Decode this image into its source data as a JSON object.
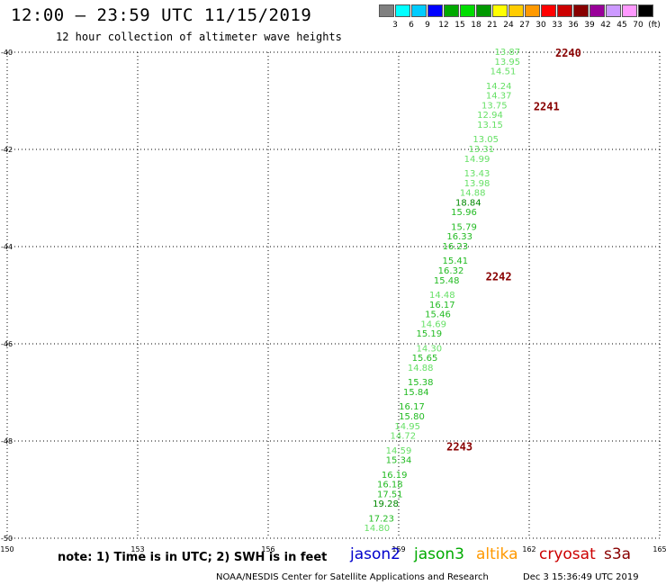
{
  "header": {
    "title": "12:00 – 23:59 UTC 11/15/2019",
    "subtitle": "12 hour collection of altimeter wave heights"
  },
  "colorbar": {
    "colors": [
      "#808080",
      "#00ffff",
      "#00ccff",
      "#0000ff",
      "#00aa00",
      "#00dd00",
      "#009900",
      "#ffff00",
      "#ffcc00",
      "#ff9900",
      "#ff0000",
      "#cc0000",
      "#880000",
      "#990099",
      "#cc99ff",
      "#ff99ff",
      "#000000"
    ],
    "labels": [
      "3",
      "6",
      "9",
      "12",
      "15",
      "18",
      "21",
      "24",
      "27",
      "30",
      "33",
      "36",
      "39",
      "42",
      "45",
      "70",
      "(ft)"
    ]
  },
  "footer": {
    "note": "note: 1) Time is in UTC; 2) SWH is in feet",
    "satellites": [
      {
        "name": "jason2",
        "color": "#0000cc"
      },
      {
        "name": "jason3",
        "color": "#00aa00"
      },
      {
        "name": "altika",
        "color": "#ff9900"
      },
      {
        "name": "cryosat",
        "color": "#cc0000"
      },
      {
        "name": "s3a",
        "color": "#880000"
      }
    ],
    "credit": "NOAA/NESDIS Center for Satellite Applications and Research",
    "timestamp": "Dec  3 15:36:49 UTC 2019"
  },
  "chart_data": {
    "type": "scatter",
    "x_ticks": [
      "150",
      "153",
      "156",
      "159",
      "162",
      "165"
    ],
    "y_ticks": [
      "-40",
      "-42",
      "-44",
      "-46",
      "-48",
      "-50"
    ],
    "xlim": [
      150,
      165
    ],
    "ylim": [
      -50,
      -40
    ],
    "grid": true,
    "time_labels": [
      {
        "text": "2240",
        "lon": 162.6,
        "lat": -40.0
      },
      {
        "text": "2241",
        "lon": 162.1,
        "lat": -41.1
      },
      {
        "text": "2242",
        "lon": 161.0,
        "lat": -44.6
      },
      {
        "text": "2243",
        "lon": 160.1,
        "lat": -48.1
      }
    ],
    "time_label_color": "#880000",
    "points": [
      {
        "v": "13.87",
        "lon": 161.5,
        "lat": -40.0
      },
      {
        "v": "13.95",
        "lon": 161.5,
        "lat": -40.2
      },
      {
        "v": "14.51",
        "lon": 161.4,
        "lat": -40.4
      },
      {
        "v": "14.24",
        "lon": 161.3,
        "lat": -40.7
      },
      {
        "v": "14.37",
        "lon": 161.3,
        "lat": -40.9
      },
      {
        "v": "13.75",
        "lon": 161.2,
        "lat": -41.1
      },
      {
        "v": "12.94",
        "lon": 161.1,
        "lat": -41.3
      },
      {
        "v": "13.15",
        "lon": 161.1,
        "lat": -41.5
      },
      {
        "v": "13.05",
        "lon": 161.0,
        "lat": -41.8
      },
      {
        "v": "13.31",
        "lon": 160.9,
        "lat": -42.0
      },
      {
        "v": "14.99",
        "lon": 160.8,
        "lat": -42.2
      },
      {
        "v": "13.43",
        "lon": 160.8,
        "lat": -42.5
      },
      {
        "v": "13.98",
        "lon": 160.8,
        "lat": -42.7
      },
      {
        "v": "14.88",
        "lon": 160.7,
        "lat": -42.9
      },
      {
        "v": "18.84",
        "lon": 160.6,
        "lat": -43.1
      },
      {
        "v": "15.96",
        "lon": 160.5,
        "lat": -43.3
      },
      {
        "v": "15.79",
        "lon": 160.5,
        "lat": -43.6
      },
      {
        "v": "16.33",
        "lon": 160.4,
        "lat": -43.8
      },
      {
        "v": "16.23",
        "lon": 160.3,
        "lat": -44.0
      },
      {
        "v": "15.41",
        "lon": 160.3,
        "lat": -44.3
      },
      {
        "v": "16.32",
        "lon": 160.2,
        "lat": -44.5
      },
      {
        "v": "15.48",
        "lon": 160.1,
        "lat": -44.7
      },
      {
        "v": "14.48",
        "lon": 160.0,
        "lat": -45.0
      },
      {
        "v": "16.17",
        "lon": 160.0,
        "lat": -45.2
      },
      {
        "v": "15.46",
        "lon": 159.9,
        "lat": -45.4
      },
      {
        "v": "14.69",
        "lon": 159.8,
        "lat": -45.6
      },
      {
        "v": "15.19",
        "lon": 159.7,
        "lat": -45.8
      },
      {
        "v": "14.30",
        "lon": 159.7,
        "lat": -46.1
      },
      {
        "v": "15.65",
        "lon": 159.6,
        "lat": -46.3
      },
      {
        "v": "14.88",
        "lon": 159.5,
        "lat": -46.5
      },
      {
        "v": "15.38",
        "lon": 159.5,
        "lat": -46.8
      },
      {
        "v": "15.84",
        "lon": 159.4,
        "lat": -47.0
      },
      {
        "v": "16.17",
        "lon": 159.3,
        "lat": -47.3
      },
      {
        "v": "15.80",
        "lon": 159.3,
        "lat": -47.5
      },
      {
        "v": "14.95",
        "lon": 159.2,
        "lat": -47.7
      },
      {
        "v": "14.72",
        "lon": 159.1,
        "lat": -47.9
      },
      {
        "v": "14.59",
        "lon": 159.0,
        "lat": -48.2
      },
      {
        "v": "15.34",
        "lon": 159.0,
        "lat": -48.4
      },
      {
        "v": "16.19",
        "lon": 158.9,
        "lat": -48.7
      },
      {
        "v": "16.18",
        "lon": 158.8,
        "lat": -48.9
      },
      {
        "v": "17.51",
        "lon": 158.8,
        "lat": -49.1
      },
      {
        "v": "19.28",
        "lon": 158.7,
        "lat": -49.3
      },
      {
        "v": "17.23",
        "lon": 158.6,
        "lat": -49.6
      },
      {
        "v": "14.80",
        "lon": 158.5,
        "lat": -49.8
      }
    ]
  }
}
